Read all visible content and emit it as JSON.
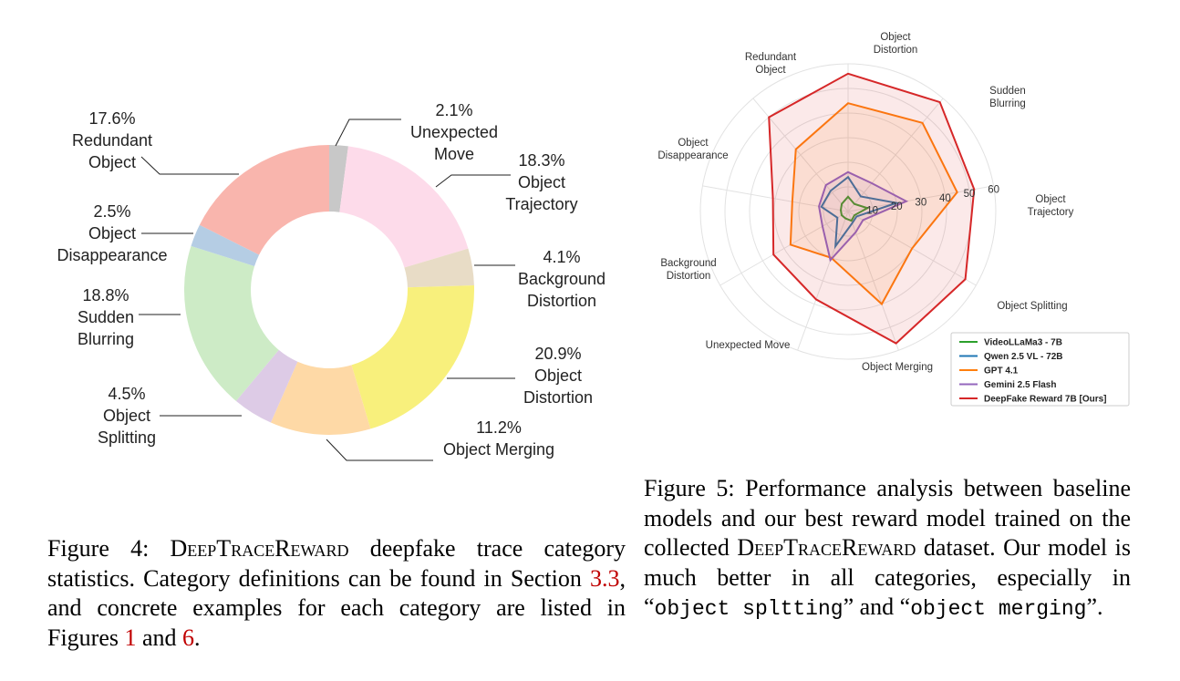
{
  "chart_data": [
    {
      "type": "pie",
      "categories": [
        "Unexpected Move",
        "Object Trajectory",
        "Background Distortion",
        "Object Distortion",
        "Object Merging",
        "Object Splitting",
        "Sudden Blurring",
        "Object Disappearance",
        "Redundant Object"
      ],
      "values": [
        2.1,
        18.3,
        4.1,
        20.9,
        11.2,
        4.5,
        18.8,
        2.5,
        17.6
      ],
      "value_labels": [
        "2.1%",
        "18.3%",
        "4.1%",
        "20.9%",
        "11.2%",
        "4.5%",
        "18.8%",
        "2.5%",
        "17.6%"
      ],
      "colors": [
        "#c8c8c8",
        "#fddbea",
        "#e8dcc6",
        "#f8f07c",
        "#fed9a6",
        "#ddcbe6",
        "#cdebc6",
        "#b5cde4",
        "#f9b5ad"
      ]
    },
    {
      "type": "radar",
      "categories": [
        "Object Distortion",
        "Sudden Blurring",
        "Object Trajectory",
        "Object Splitting",
        "Object Merging",
        "Unexpected Move",
        "Background Distortion",
        "Object Disappearance",
        "Redundant Object"
      ],
      "rlim": [
        0,
        60
      ],
      "rticks": [
        10,
        20,
        30,
        40,
        50,
        60
      ],
      "legend": "lower right",
      "series": [
        {
          "name": "VideoLLaMa3 - 7B",
          "color": "#2ca02c",
          "values": [
            6,
            4,
            8,
            3,
            4,
            3,
            3,
            3,
            4
          ]
        },
        {
          "name": "Qwen 2.5 VL - 72B",
          "color": "#1f77b4",
          "values": [
            14,
            8,
            20,
            4,
            5,
            15,
            5,
            11,
            11
          ]
        },
        {
          "name": "GPT 4.1",
          "color": "#ff7f0e",
          "values": [
            44,
            47,
            45,
            30,
            40,
            20,
            27,
            23,
            33
          ]
        },
        {
          "name": "Gemini 2.5 Flash",
          "color": "#9467bd",
          "values": [
            16,
            15,
            24,
            7,
            9,
            21,
            12,
            12,
            14
          ]
        },
        {
          "name": "DeepFake Reward 7B [Ours]",
          "color": "#d62728",
          "values": [
            56,
            58,
            52,
            55,
            57,
            38,
            35,
            31,
            50
          ]
        }
      ]
    }
  ],
  "captions": [
    {
      "parts": [
        "Figure 4: ",
        "DeepTraceReward",
        " deepfake trace category statistics. Category definitions can be found in Section ",
        "3.3",
        ", and concrete examples for each category are listed in Figures ",
        "1",
        " and ",
        "6",
        "."
      ]
    },
    {
      "parts": [
        "Figure 5:  Performance analysis between baseline models and our best reward model trained on the collected ",
        "DeepTraceReward",
        " dataset. Our model is much better in all categories, especially in “",
        "object spltting",
        "” and “",
        "object merging",
        "”."
      ]
    }
  ]
}
